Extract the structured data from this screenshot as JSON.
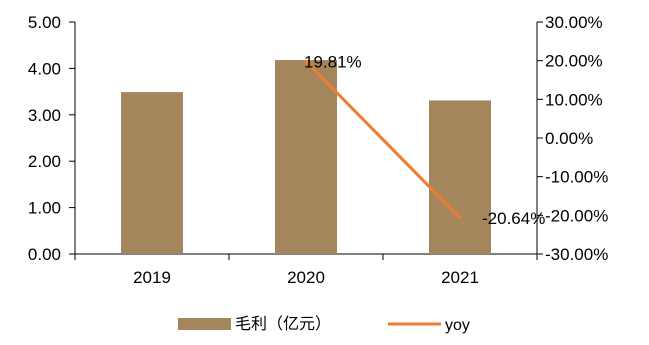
{
  "chart_data": {
    "type": "bar+line",
    "categories": [
      "2019",
      "2020",
      "2021"
    ],
    "series": [
      {
        "name": "毛利（亿元）",
        "type": "bar",
        "axis": "left",
        "values": [
          3.49,
          4.18,
          3.31
        ],
        "color": "#A5855B"
      },
      {
        "name": "yoy",
        "type": "line",
        "axis": "right",
        "values": [
          null,
          19.81,
          -20.64
        ],
        "color": "#ED7D31"
      }
    ],
    "data_labels": [
      "19.81%",
      "-20.64%"
    ],
    "y_left": {
      "lim": [
        0,
        5
      ],
      "ticks": [
        "0.00",
        "1.00",
        "2.00",
        "3.00",
        "4.00",
        "5.00"
      ]
    },
    "y_right": {
      "lim": [
        -30,
        30
      ],
      "ticks": [
        "-30.00%",
        "-20.00%",
        "-10.00%",
        "0.00%",
        "10.00%",
        "20.00%",
        "30.00%"
      ]
    },
    "legend_position": "bottom",
    "grid": false
  }
}
